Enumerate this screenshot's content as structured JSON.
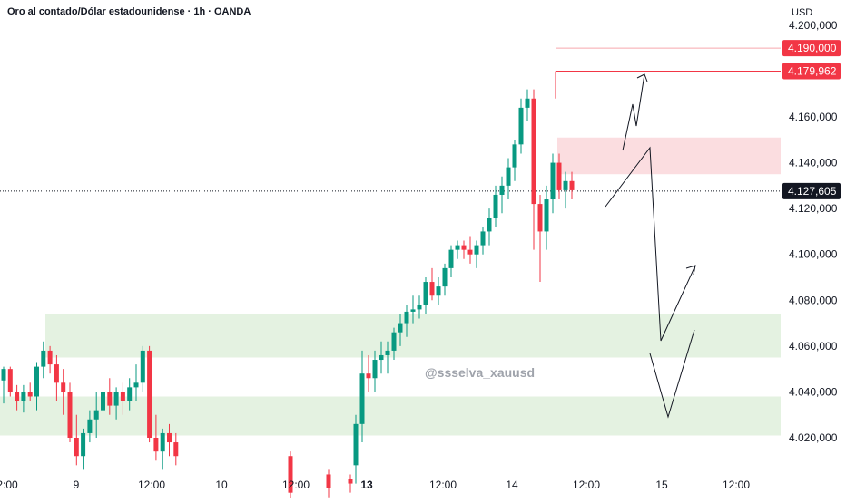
{
  "header": {
    "title": "Oro al contado/Dólar estadounidense · 1h · OANDA"
  },
  "watermark": "@ssselva_xauusd",
  "colors": {
    "up": "#089981",
    "down": "#f23645",
    "supply_zone": "#fbdde0",
    "demand_zone": "#e4f2e1",
    "label_red": "#f23645",
    "label_dark": "#131722",
    "text": "#131722",
    "grid_line": "#d1d4dc"
  },
  "chart_data": {
    "type": "candlestick",
    "title": "Oro al contado/Dólar estadounidense · 1h · OANDA",
    "currency": "USD",
    "y_ticks": [
      4020,
      4040,
      4060,
      4080,
      4100,
      4120,
      4140,
      4160,
      4200
    ],
    "y_tick_labels": [
      "4.020,000",
      "4.040,000",
      "4.060,000",
      "4.080,000",
      "4.100,000",
      "4.120,000",
      "4.140,000",
      "4.160,000",
      "4.200,000"
    ],
    "x_ticks": [
      {
        "label": "2:00",
        "bold": false
      },
      {
        "label": "9",
        "bold": false
      },
      {
        "label": "12:00",
        "bold": false
      },
      {
        "label": "10",
        "bold": false
      },
      {
        "label": "12:00",
        "bold": false
      },
      {
        "label": "13",
        "bold": true
      },
      {
        "label": "12:00",
        "bold": false
      },
      {
        "label": "14",
        "bold": false
      },
      {
        "label": "12:00",
        "bold": false
      },
      {
        "label": "15",
        "bold": false
      },
      {
        "label": "12:00",
        "bold": false
      }
    ],
    "price_labels": [
      {
        "value": 4190.0,
        "text": "4.190,000",
        "style": "red"
      },
      {
        "value": 4179.962,
        "text": "4.179,962",
        "style": "red"
      },
      {
        "value": 4127.605,
        "text": "4.127,605",
        "style": "dark"
      }
    ],
    "zones": [
      {
        "type": "supply",
        "from": 4135,
        "to": 4151
      },
      {
        "type": "demand",
        "from": 4055,
        "to": 4074
      },
      {
        "type": "demand",
        "from": 4021,
        "to": 4038
      }
    ],
    "candles": [
      [
        4045,
        4051,
        4035,
        4050
      ],
      [
        4050,
        4051,
        4038,
        4040
      ],
      [
        4040,
        4043,
        4032,
        4036
      ],
      [
        4036,
        4043,
        4031,
        4040
      ],
      [
        4040,
        4044,
        4036,
        4038
      ],
      [
        4038,
        4053,
        4032,
        4051
      ],
      [
        4051,
        4062,
        4046,
        4058
      ],
      [
        4058,
        4060,
        4048,
        4052
      ],
      [
        4052,
        4056,
        4036,
        4044
      ],
      [
        4044,
        4050,
        4030,
        4040
      ],
      [
        4040,
        4044,
        4018,
        4020
      ],
      [
        4020,
        4030,
        4008,
        4012
      ],
      [
        4012,
        4024,
        4006,
        4022
      ],
      [
        4022,
        4032,
        4018,
        4028
      ],
      [
        4028,
        4040,
        4020,
        4032
      ],
      [
        4032,
        4045,
        4028,
        4040
      ],
      [
        4040,
        4046,
        4030,
        4034
      ],
      [
        4034,
        4042,
        4028,
        4040
      ],
      [
        4040,
        4044,
        4030,
        4036
      ],
      [
        4036,
        4046,
        4032,
        4042
      ],
      [
        4042,
        4052,
        4036,
        4044
      ],
      [
        4044,
        4060,
        4040,
        4058
      ],
      [
        4058,
        4060,
        4018,
        4020
      ],
      [
        4020,
        4030,
        4010,
        4014
      ],
      [
        4014,
        4024,
        4006,
        4022
      ],
      [
        4022,
        4026,
        4012,
        4018
      ],
      [
        4018,
        4022,
        4008,
        4012
      ],
      [
        4012,
        4014,
        3990,
        3996
      ],
      [
        4004,
        4006,
        3994,
        3998
      ],
      [
        4002,
        4004,
        3996,
        4000
      ],
      [
        4008,
        4030,
        4000,
        4026
      ],
      [
        4026,
        4058,
        4018,
        4048
      ],
      [
        4048,
        4056,
        4040,
        4046
      ],
      [
        4046,
        4058,
        4040,
        4054
      ],
      [
        4054,
        4062,
        4048,
        4056
      ],
      [
        4056,
        4062,
        4048,
        4058
      ],
      [
        4058,
        4068,
        4054,
        4066
      ],
      [
        4066,
        4074,
        4060,
        4070
      ],
      [
        4070,
        4078,
        4064,
        4075
      ],
      [
        4075,
        4082,
        4070,
        4076
      ],
      [
        4076,
        4082,
        4072,
        4078
      ],
      [
        4078,
        4090,
        4074,
        4088
      ],
      [
        4088,
        4094,
        4080,
        4082
      ],
      [
        4082,
        4090,
        4078,
        4086
      ],
      [
        4086,
        4096,
        4082,
        4094
      ],
      [
        4094,
        4104,
        4090,
        4102
      ],
      [
        4102,
        4106,
        4098,
        4104
      ],
      [
        4104,
        4106,
        4098,
        4102
      ],
      [
        4102,
        4108,
        4096,
        4100
      ],
      [
        4100,
        4106,
        4094,
        4104
      ],
      [
        4104,
        4112,
        4100,
        4110
      ],
      [
        4110,
        4120,
        4104,
        4116
      ],
      [
        4116,
        4130,
        4112,
        4126
      ],
      [
        4126,
        4134,
        4118,
        4130
      ],
      [
        4130,
        4142,
        4124,
        4138
      ],
      [
        4138,
        4150,
        4132,
        4148
      ],
      [
        4148,
        4168,
        4144,
        4164
      ],
      [
        4164,
        4172,
        4158,
        4168
      ],
      [
        4168,
        4172,
        4102,
        4122
      ],
      [
        4122,
        4126,
        4088,
        4110
      ],
      [
        4110,
        4130,
        4102,
        4124
      ],
      [
        4124,
        4144,
        4118,
        4140
      ],
      [
        4140,
        4144,
        4124,
        4128
      ],
      [
        4128,
        4136,
        4120,
        4132
      ],
      [
        4132,
        4136,
        4124,
        4128
      ]
    ]
  }
}
